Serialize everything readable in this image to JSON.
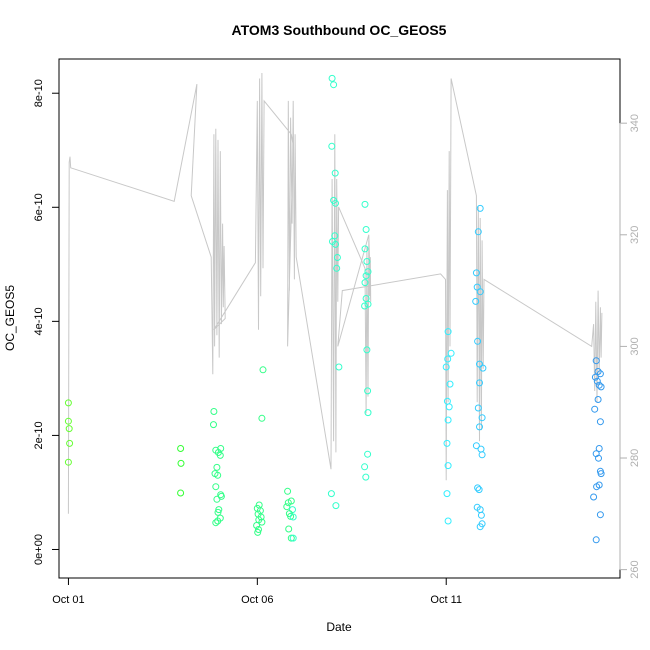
{
  "chart_data": {
    "type": "scatter",
    "title": "ATOM3 Southbound OC_GEOS5",
    "xlabel": "Date",
    "ylabel": "OC_GEOS5",
    "x_ticks": [
      "Oct 01",
      "Oct 06",
      "Oct 11"
    ],
    "x_tick_values": [
      1,
      6,
      11
    ],
    "xlim": [
      0.75,
      15.6
    ],
    "y_ticks": [
      "0e+00",
      "2e-10",
      "4e-10",
      "6e-10",
      "8e-10"
    ],
    "y_tick_values": [
      0,
      2e-10,
      4e-10,
      6e-10,
      8e-10
    ],
    "ylim": [
      -5e-11,
      8.6e-10
    ],
    "y2_ticks": [
      "260",
      "280",
      "300",
      "320",
      "340"
    ],
    "y2_tick_values": [
      260,
      280,
      300,
      320,
      340
    ],
    "y2lim": [
      258.5,
      351.5
    ],
    "box": true,
    "grid": false,
    "legend": "none",
    "series": [
      {
        "kind": "points",
        "color_by": "time",
        "colors": [
          "#66ff33",
          "#33ff33",
          "#33ff88",
          "#33ffcc",
          "#33eeff",
          "#33ccff",
          "#3399ee"
        ],
        "values": [
          {
            "x": 1.0,
            "y": 2.57e-10
          },
          {
            "x": 1.0,
            "y": 2.25e-10
          },
          {
            "x": 1.02,
            "y": 2.12e-10
          },
          {
            "x": 1.03,
            "y": 1.86e-10
          },
          {
            "x": 1.0,
            "y": 1.53e-10
          },
          {
            "x": 3.97,
            "y": 1.77e-10
          },
          {
            "x": 3.98,
            "y": 1.51e-10
          },
          {
            "x": 3.97,
            "y": 9.9e-11
          },
          {
            "x": 4.85,
            "y": 2.42e-10
          },
          {
            "x": 4.84,
            "y": 2.19e-10
          },
          {
            "x": 4.9,
            "y": 1.74e-10
          },
          {
            "x": 5.03,
            "y": 1.77e-10
          },
          {
            "x": 4.97,
            "y": 1.7e-10
          },
          {
            "x": 5.02,
            "y": 1.65e-10
          },
          {
            "x": 4.93,
            "y": 1.44e-10
          },
          {
            "x": 4.88,
            "y": 1.33e-10
          },
          {
            "x": 4.95,
            "y": 1.3e-10
          },
          {
            "x": 4.9,
            "y": 1.1e-10
          },
          {
            "x": 5.03,
            "y": 9.6e-11
          },
          {
            "x": 5.05,
            "y": 9.3e-11
          },
          {
            "x": 4.93,
            "y": 8.8e-11
          },
          {
            "x": 4.98,
            "y": 7e-11
          },
          {
            "x": 4.96,
            "y": 6.5e-11
          },
          {
            "x": 5.02,
            "y": 5.5e-11
          },
          {
            "x": 4.95,
            "y": 5e-11
          },
          {
            "x": 4.9,
            "y": 4.7e-11
          },
          {
            "x": 6.15,
            "y": 3.15e-10
          },
          {
            "x": 6.12,
            "y": 2.3e-10
          },
          {
            "x": 6.05,
            "y": 7.8e-11
          },
          {
            "x": 6.0,
            "y": 7.2e-11
          },
          {
            "x": 6.08,
            "y": 6.8e-11
          },
          {
            "x": 6.02,
            "y": 6.2e-11
          },
          {
            "x": 6.1,
            "y": 5.7e-11
          },
          {
            "x": 6.04,
            "y": 5.2e-11
          },
          {
            "x": 6.12,
            "y": 4.8e-11
          },
          {
            "x": 5.98,
            "y": 4.2e-11
          },
          {
            "x": 6.03,
            "y": 3.5e-11
          },
          {
            "x": 6.01,
            "y": 3e-11
          },
          {
            "x": 6.8,
            "y": 1.02e-10
          },
          {
            "x": 6.9,
            "y": 8.5e-11
          },
          {
            "x": 6.82,
            "y": 8.2e-11
          },
          {
            "x": 6.78,
            "y": 7.5e-11
          },
          {
            "x": 6.93,
            "y": 7e-11
          },
          {
            "x": 6.85,
            "y": 6.3e-11
          },
          {
            "x": 6.88,
            "y": 5.8e-11
          },
          {
            "x": 6.95,
            "y": 5.7e-11
          },
          {
            "x": 6.83,
            "y": 3.6e-11
          },
          {
            "x": 6.9,
            "y": 2e-11
          },
          {
            "x": 6.95,
            "y": 2e-11
          },
          {
            "x": 7.98,
            "y": 8.26e-10
          },
          {
            "x": 8.02,
            "y": 8.15e-10
          },
          {
            "x": 7.97,
            "y": 7.07e-10
          },
          {
            "x": 8.06,
            "y": 6.6e-10
          },
          {
            "x": 8.02,
            "y": 6.12e-10
          },
          {
            "x": 8.07,
            "y": 6.07e-10
          },
          {
            "x": 8.05,
            "y": 5.5e-10
          },
          {
            "x": 7.99,
            "y": 5.4e-10
          },
          {
            "x": 8.07,
            "y": 5.35e-10
          },
          {
            "x": 8.12,
            "y": 5.12e-10
          },
          {
            "x": 8.1,
            "y": 4.93e-10
          },
          {
            "x": 8.16,
            "y": 3.2e-10
          },
          {
            "x": 7.96,
            "y": 9.8e-11
          },
          {
            "x": 8.08,
            "y": 7.7e-11
          },
          {
            "x": 8.85,
            "y": 6.05e-10
          },
          {
            "x": 8.88,
            "y": 5.61e-10
          },
          {
            "x": 8.85,
            "y": 5.27e-10
          },
          {
            "x": 8.9,
            "y": 5.05e-10
          },
          {
            "x": 8.93,
            "y": 4.87e-10
          },
          {
            "x": 8.88,
            "y": 4.8e-10
          },
          {
            "x": 8.85,
            "y": 4.68e-10
          },
          {
            "x": 8.88,
            "y": 4.4e-10
          },
          {
            "x": 8.93,
            "y": 4.3e-10
          },
          {
            "x": 8.84,
            "y": 4.27e-10
          },
          {
            "x": 8.9,
            "y": 3.5e-10
          },
          {
            "x": 8.92,
            "y": 2.78e-10
          },
          {
            "x": 8.93,
            "y": 2.4e-10
          },
          {
            "x": 8.92,
            "y": 1.67e-10
          },
          {
            "x": 8.84,
            "y": 1.45e-10
          },
          {
            "x": 8.87,
            "y": 1.27e-10
          },
          {
            "x": 11.05,
            "y": 3.82e-10
          },
          {
            "x": 11.13,
            "y": 3.44e-10
          },
          {
            "x": 11.04,
            "y": 3.34e-10
          },
          {
            "x": 11.0,
            "y": 3.2e-10
          },
          {
            "x": 11.1,
            "y": 2.9e-10
          },
          {
            "x": 11.03,
            "y": 2.6e-10
          },
          {
            "x": 11.08,
            "y": 2.5e-10
          },
          {
            "x": 11.05,
            "y": 2.27e-10
          },
          {
            "x": 11.02,
            "y": 1.86e-10
          },
          {
            "x": 11.05,
            "y": 1.47e-10
          },
          {
            "x": 11.02,
            "y": 9.8e-11
          },
          {
            "x": 11.05,
            "y": 5e-11
          },
          {
            "x": 11.9,
            "y": 5.98e-10
          },
          {
            "x": 11.85,
            "y": 5.57e-10
          },
          {
            "x": 11.8,
            "y": 4.85e-10
          },
          {
            "x": 11.82,
            "y": 4.6e-10
          },
          {
            "x": 11.9,
            "y": 4.52e-10
          },
          {
            "x": 11.78,
            "y": 4.35e-10
          },
          {
            "x": 11.83,
            "y": 3.65e-10
          },
          {
            "x": 11.88,
            "y": 3.25e-10
          },
          {
            "x": 11.97,
            "y": 3.18e-10
          },
          {
            "x": 11.88,
            "y": 2.92e-10
          },
          {
            "x": 11.85,
            "y": 2.48e-10
          },
          {
            "x": 11.95,
            "y": 2.31e-10
          },
          {
            "x": 11.88,
            "y": 2.15e-10
          },
          {
            "x": 11.8,
            "y": 1.82e-10
          },
          {
            "x": 11.92,
            "y": 1.76e-10
          },
          {
            "x": 11.95,
            "y": 1.66e-10
          },
          {
            "x": 11.83,
            "y": 1.08e-10
          },
          {
            "x": 11.87,
            "y": 1.05e-10
          },
          {
            "x": 11.82,
            "y": 7.4e-11
          },
          {
            "x": 11.9,
            "y": 7e-11
          },
          {
            "x": 11.93,
            "y": 6e-11
          },
          {
            "x": 11.95,
            "y": 4.5e-11
          },
          {
            "x": 11.9,
            "y": 4e-11
          },
          {
            "x": 14.97,
            "y": 3.31e-10
          },
          {
            "x": 15.02,
            "y": 3.12e-10
          },
          {
            "x": 15.08,
            "y": 3.08e-10
          },
          {
            "x": 14.95,
            "y": 3.02e-10
          },
          {
            "x": 15.0,
            "y": 2.95e-10
          },
          {
            "x": 15.05,
            "y": 2.88e-10
          },
          {
            "x": 15.1,
            "y": 2.85e-10
          },
          {
            "x": 15.02,
            "y": 2.63e-10
          },
          {
            "x": 14.93,
            "y": 2.46e-10
          },
          {
            "x": 15.08,
            "y": 2.24e-10
          },
          {
            "x": 15.05,
            "y": 1.77e-10
          },
          {
            "x": 14.97,
            "y": 1.68e-10
          },
          {
            "x": 15.03,
            "y": 1.6e-10
          },
          {
            "x": 15.08,
            "y": 1.37e-10
          },
          {
            "x": 15.1,
            "y": 1.33e-10
          },
          {
            "x": 15.05,
            "y": 1.13e-10
          },
          {
            "x": 14.98,
            "y": 1.1e-10
          },
          {
            "x": 14.9,
            "y": 9.2e-11
          },
          {
            "x": 15.08,
            "y": 6.1e-11
          },
          {
            "x": 14.97,
            "y": 1.7e-11
          }
        ]
      },
      {
        "kind": "line",
        "axis": "right",
        "color": "#c8c8c8",
        "values": [
          {
            "x": 1.0,
            "y": 270
          },
          {
            "x": 1.02,
            "y": 333
          },
          {
            "x": 1.04,
            "y": 334
          },
          {
            "x": 1.06,
            "y": 332
          },
          {
            "x": 3.8,
            "y": 326
          },
          {
            "x": 4.4,
            "y": 347
          },
          {
            "x": 4.25,
            "y": 327
          },
          {
            "x": 4.78,
            "y": 316
          },
          {
            "x": 4.82,
            "y": 295
          },
          {
            "x": 4.85,
            "y": 338
          },
          {
            "x": 4.87,
            "y": 300
          },
          {
            "x": 4.9,
            "y": 339
          },
          {
            "x": 4.93,
            "y": 302
          },
          {
            "x": 4.96,
            "y": 337
          },
          {
            "x": 4.99,
            "y": 298
          },
          {
            "x": 5.02,
            "y": 335
          },
          {
            "x": 5.05,
            "y": 304
          },
          {
            "x": 5.08,
            "y": 322
          },
          {
            "x": 5.1,
            "y": 307
          },
          {
            "x": 5.12,
            "y": 318
          },
          {
            "x": 5.15,
            "y": 305
          },
          {
            "x": 4.85,
            "y": 303
          },
          {
            "x": 5.95,
            "y": 315
          },
          {
            "x": 6.0,
            "y": 344
          },
          {
            "x": 6.03,
            "y": 303
          },
          {
            "x": 6.06,
            "y": 348
          },
          {
            "x": 6.09,
            "y": 309
          },
          {
            "x": 6.12,
            "y": 349
          },
          {
            "x": 6.15,
            "y": 314
          },
          {
            "x": 6.18,
            "y": 344
          },
          {
            "x": 6.9,
            "y": 338
          },
          {
            "x": 6.95,
            "y": 336
          },
          {
            "x": 6.8,
            "y": 300
          },
          {
            "x": 6.82,
            "y": 344
          },
          {
            "x": 6.85,
            "y": 310
          },
          {
            "x": 6.88,
            "y": 341
          },
          {
            "x": 6.92,
            "y": 322
          },
          {
            "x": 6.95,
            "y": 344
          },
          {
            "x": 6.98,
            "y": 312
          },
          {
            "x": 7.0,
            "y": 338
          },
          {
            "x": 7.03,
            "y": 316
          },
          {
            "x": 7.95,
            "y": 278
          },
          {
            "x": 7.98,
            "y": 330
          },
          {
            "x": 8.02,
            "y": 283
          },
          {
            "x": 8.05,
            "y": 338
          },
          {
            "x": 8.08,
            "y": 281
          },
          {
            "x": 8.1,
            "y": 330
          },
          {
            "x": 8.13,
            "y": 308
          },
          {
            "x": 8.15,
            "y": 325
          },
          {
            "x": 8.85,
            "y": 314
          },
          {
            "x": 8.88,
            "y": 288
          },
          {
            "x": 8.9,
            "y": 318
          },
          {
            "x": 8.93,
            "y": 291
          },
          {
            "x": 8.95,
            "y": 319
          },
          {
            "x": 8.97,
            "y": 309
          },
          {
            "x": 8.99,
            "y": 316
          },
          {
            "x": 9.0,
            "y": 308
          },
          {
            "x": 8.95,
            "y": 320
          },
          {
            "x": 8.13,
            "y": 300
          },
          {
            "x": 8.25,
            "y": 310
          },
          {
            "x": 10.85,
            "y": 313
          },
          {
            "x": 10.98,
            "y": 312
          },
          {
            "x": 11.0,
            "y": 276
          },
          {
            "x": 11.03,
            "y": 328
          },
          {
            "x": 11.05,
            "y": 290
          },
          {
            "x": 11.08,
            "y": 335
          },
          {
            "x": 11.1,
            "y": 300
          },
          {
            "x": 11.13,
            "y": 348
          },
          {
            "x": 11.8,
            "y": 327
          },
          {
            "x": 11.82,
            "y": 290
          },
          {
            "x": 11.85,
            "y": 325
          },
          {
            "x": 11.88,
            "y": 283
          },
          {
            "x": 11.9,
            "y": 323
          },
          {
            "x": 11.93,
            "y": 285
          },
          {
            "x": 11.95,
            "y": 319
          },
          {
            "x": 11.98,
            "y": 296
          },
          {
            "x": 12.0,
            "y": 312
          },
          {
            "x": 14.85,
            "y": 300
          },
          {
            "x": 14.9,
            "y": 304
          },
          {
            "x": 14.93,
            "y": 292
          },
          {
            "x": 14.96,
            "y": 308
          },
          {
            "x": 14.99,
            "y": 290
          },
          {
            "x": 15.02,
            "y": 310
          },
          {
            "x": 15.05,
            "y": 295
          },
          {
            "x": 15.08,
            "y": 307
          },
          {
            "x": 15.1,
            "y": 298
          },
          {
            "x": 15.12,
            "y": 306
          }
        ]
      }
    ]
  }
}
